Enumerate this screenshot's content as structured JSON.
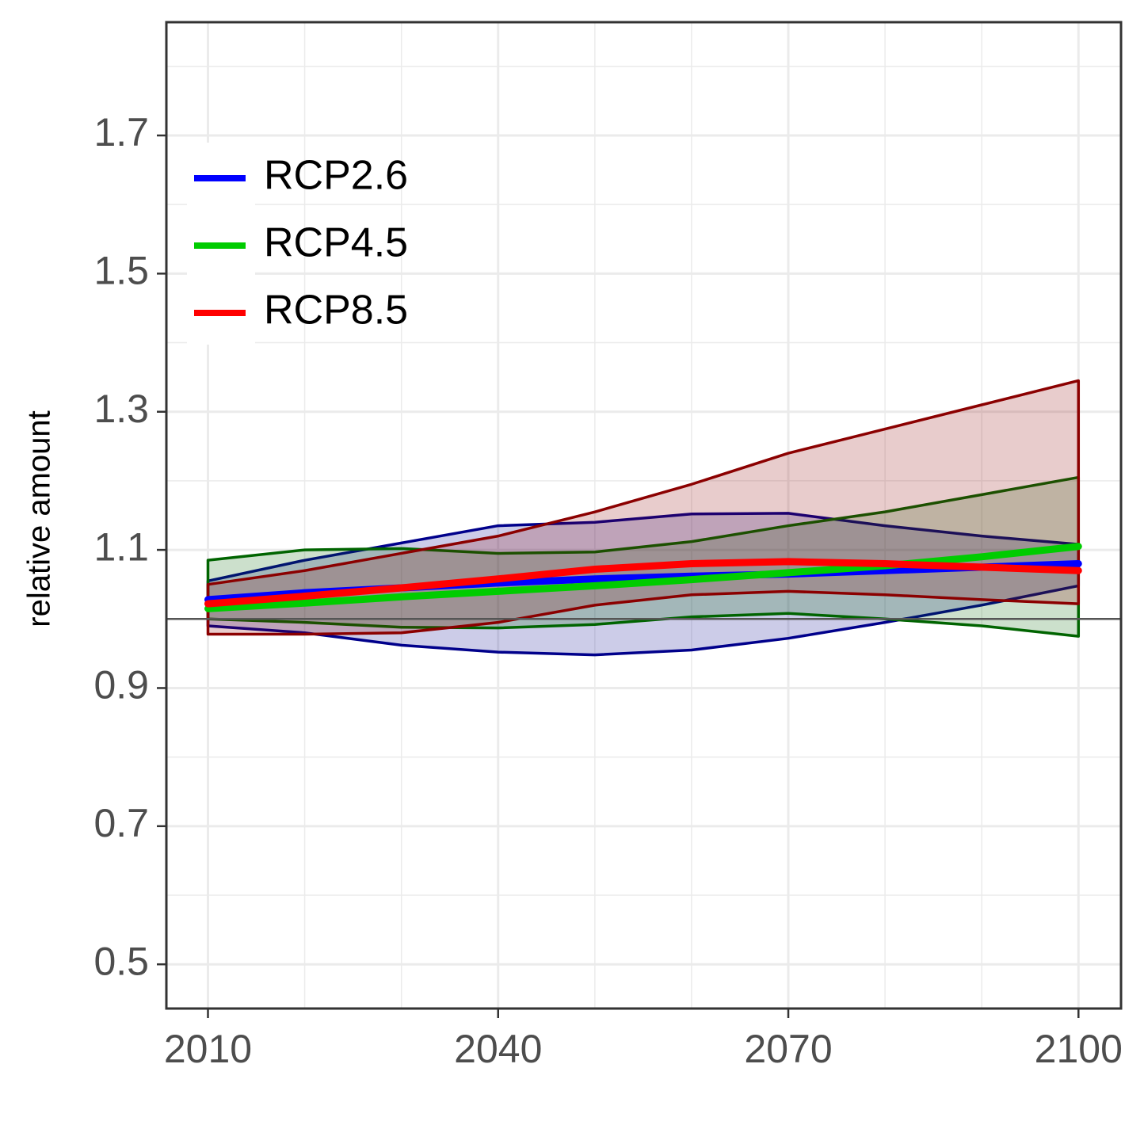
{
  "chart_data": {
    "type": "line_ribbon",
    "y_label": "relative amount",
    "x": [
      2010,
      2020,
      2030,
      2040,
      2050,
      2060,
      2070,
      2080,
      2090,
      2100
    ],
    "series": [
      {
        "name": "RCP2.6",
        "color": "#0000ff",
        "band_color": "#00008b",
        "values": [
          1.028,
          1.038,
          1.045,
          1.052,
          1.058,
          1.062,
          1.065,
          1.07,
          1.075,
          1.08
        ],
        "upper": [
          1.055,
          1.085,
          1.11,
          1.135,
          1.14,
          1.152,
          1.153,
          1.135,
          1.12,
          1.108
        ],
        "lower": [
          0.99,
          0.98,
          0.962,
          0.952,
          0.948,
          0.955,
          0.972,
          0.995,
          1.02,
          1.048
        ]
      },
      {
        "name": "RCP4.5",
        "color": "#00cc00",
        "band_color": "#006400",
        "values": [
          1.015,
          1.023,
          1.032,
          1.04,
          1.048,
          1.057,
          1.067,
          1.077,
          1.09,
          1.105
        ],
        "upper": [
          1.085,
          1.1,
          1.102,
          1.095,
          1.097,
          1.112,
          1.135,
          1.155,
          1.18,
          1.205
        ],
        "lower": [
          1.0,
          0.995,
          0.988,
          0.987,
          0.992,
          1.003,
          1.008,
          1.0,
          0.99,
          0.975
        ]
      },
      {
        "name": "RCP8.5",
        "color": "#ff0000",
        "band_color": "#8b0000",
        "values": [
          1.022,
          1.033,
          1.045,
          1.058,
          1.072,
          1.08,
          1.083,
          1.08,
          1.075,
          1.07
        ],
        "upper": [
          1.05,
          1.07,
          1.095,
          1.12,
          1.155,
          1.195,
          1.24,
          1.275,
          1.31,
          1.345
        ],
        "lower": [
          0.978,
          0.978,
          0.98,
          0.995,
          1.02,
          1.035,
          1.04,
          1.035,
          1.028,
          1.022
        ]
      }
    ],
    "xlim": [
      2005.7,
      2104.4
    ],
    "ylim": [
      0.436,
      1.864
    ],
    "xticks": [
      2010,
      2040,
      2070,
      2100
    ],
    "yticks": [
      0.5,
      0.7,
      0.9,
      1.1,
      1.3,
      1.5,
      1.7
    ],
    "x_minor_grid": [
      2020,
      2030,
      2050,
      2060,
      2080,
      2090
    ],
    "y_minor_grid": [
      0.6,
      0.8,
      1.0,
      1.2,
      1.4,
      1.6,
      1.8
    ],
    "reference_line": 1.0,
    "grid": true,
    "legend": "top-left"
  }
}
